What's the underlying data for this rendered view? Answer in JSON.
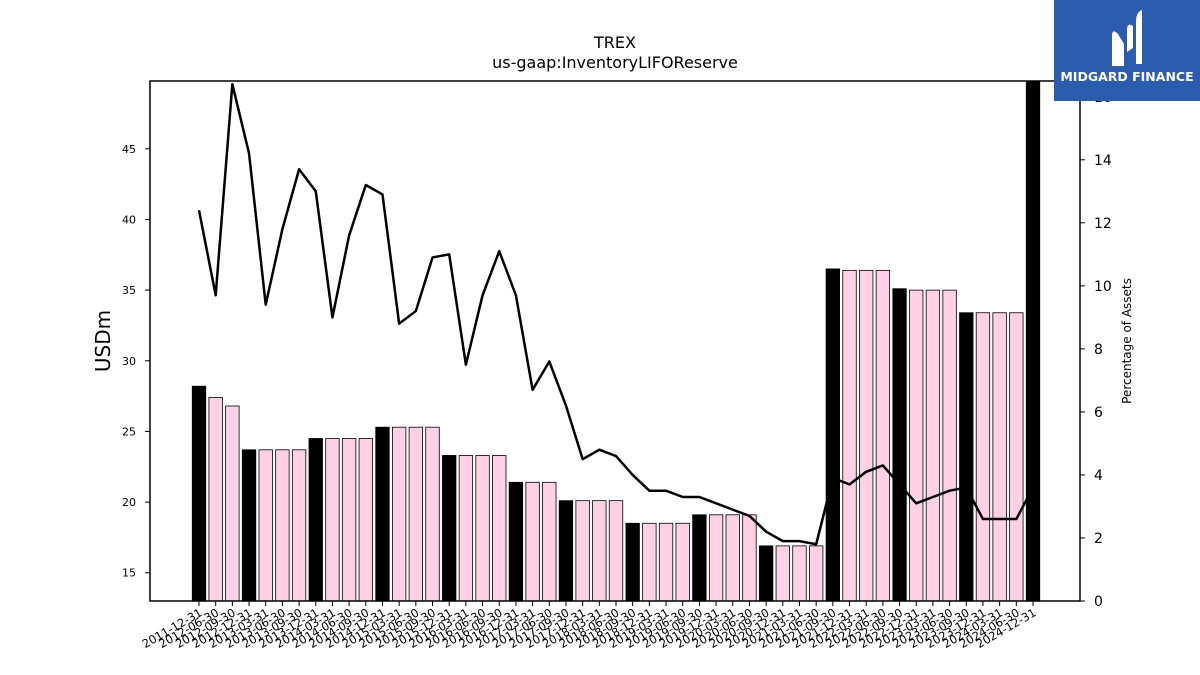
{
  "logo": {
    "text": "MIDGARD FINANCE",
    "icon": "midgard-m-icon",
    "background": "#2b5cad"
  },
  "chart_data": {
    "type": "bar",
    "title": "TREX",
    "subtitle": "us-gaap:InventoryLIFOReserve",
    "ylabel": "USDm",
    "y2label": "Percentage of Assets",
    "ylim": [
      13,
      49.8
    ],
    "y2lim": [
      0,
      16.5
    ],
    "yticks": [
      15,
      20,
      25,
      30,
      35,
      40,
      45
    ],
    "y2ticks": [
      0,
      2,
      4,
      6,
      8,
      10,
      12,
      14,
      16
    ],
    "grid": false,
    "categories": [
      "2011-12-31",
      "2012-06-30",
      "2012-09-30",
      "2012-12-31",
      "2013-03-31",
      "2013-06-30",
      "2013-09-30",
      "2013-12-31",
      "2014-03-31",
      "2014-06-30",
      "2014-09-30",
      "2014-12-31",
      "2015-03-31",
      "2015-06-30",
      "2015-09-30",
      "2015-12-31",
      "2016-03-31",
      "2016-06-30",
      "2016-09-30",
      "2016-12-31",
      "2017-03-31",
      "2017-06-30",
      "2017-09-30",
      "2017-12-31",
      "2018-03-31",
      "2018-06-30",
      "2018-09-30",
      "2018-12-31",
      "2019-03-31",
      "2019-06-30",
      "2019-09-30",
      "2019-12-31",
      "2020-03-31",
      "2020-06-30",
      "2020-09-30",
      "2020-12-31",
      "2021-03-31",
      "2021-06-30",
      "2021-09-30",
      "2021-12-31",
      "2022-03-31",
      "2022-06-30",
      "2022-09-30",
      "2022-12-31",
      "2023-03-31",
      "2023-06-30",
      "2023-09-30",
      "2023-12-31",
      "2024-03-31",
      "2024-06-30",
      "2024-12-31"
    ],
    "series": [
      {
        "type": "bar",
        "axis": "left",
        "values": [
          28.2,
          27.4,
          26.8,
          23.7,
          23.7,
          23.7,
          23.7,
          24.5,
          24.5,
          24.5,
          24.5,
          25.3,
          25.3,
          25.3,
          25.3,
          23.3,
          23.3,
          23.3,
          23.3,
          21.4,
          21.4,
          21.4,
          20.1,
          20.1,
          20.1,
          20.1,
          18.5,
          18.5,
          18.5,
          18.5,
          19.1,
          19.1,
          19.1,
          19.1,
          16.9,
          16.9,
          16.9,
          16.9,
          36.5,
          36.4,
          36.4,
          36.4,
          35.1,
          35.0,
          35.0,
          35.0,
          33.4,
          33.4,
          33.4,
          33.4,
          49.8
        ],
        "highlight": [
          true,
          false,
          false,
          true,
          false,
          false,
          false,
          true,
          false,
          false,
          false,
          true,
          false,
          false,
          false,
          true,
          false,
          false,
          false,
          true,
          false,
          false,
          true,
          false,
          false,
          false,
          true,
          false,
          false,
          false,
          true,
          false,
          false,
          false,
          true,
          false,
          false,
          false,
          true,
          false,
          false,
          false,
          true,
          false,
          false,
          false,
          true,
          false,
          false,
          false,
          true
        ],
        "colors": {
          "highlight": "#000000",
          "normal": "#ffd0e6",
          "edge": "#000000"
        }
      },
      {
        "type": "line",
        "axis": "right",
        "color": "#000000",
        "values": [
          12.4,
          9.7,
          16.4,
          14.2,
          9.4,
          11.8,
          13.7,
          13.0,
          9.0,
          11.6,
          13.2,
          12.9,
          8.8,
          9.2,
          10.9,
          11.0,
          7.5,
          9.7,
          11.1,
          9.7,
          6.7,
          7.6,
          6.2,
          4.5,
          4.8,
          4.6,
          4.0,
          3.5,
          3.5,
          3.3,
          3.3,
          3.1,
          2.9,
          2.7,
          2.2,
          1.9,
          1.9,
          1.8,
          3.9,
          3.7,
          4.1,
          4.3,
          3.7,
          3.1,
          3.3,
          3.5,
          3.6,
          2.6,
          2.6,
          2.6,
          3.6
        ]
      }
    ]
  }
}
